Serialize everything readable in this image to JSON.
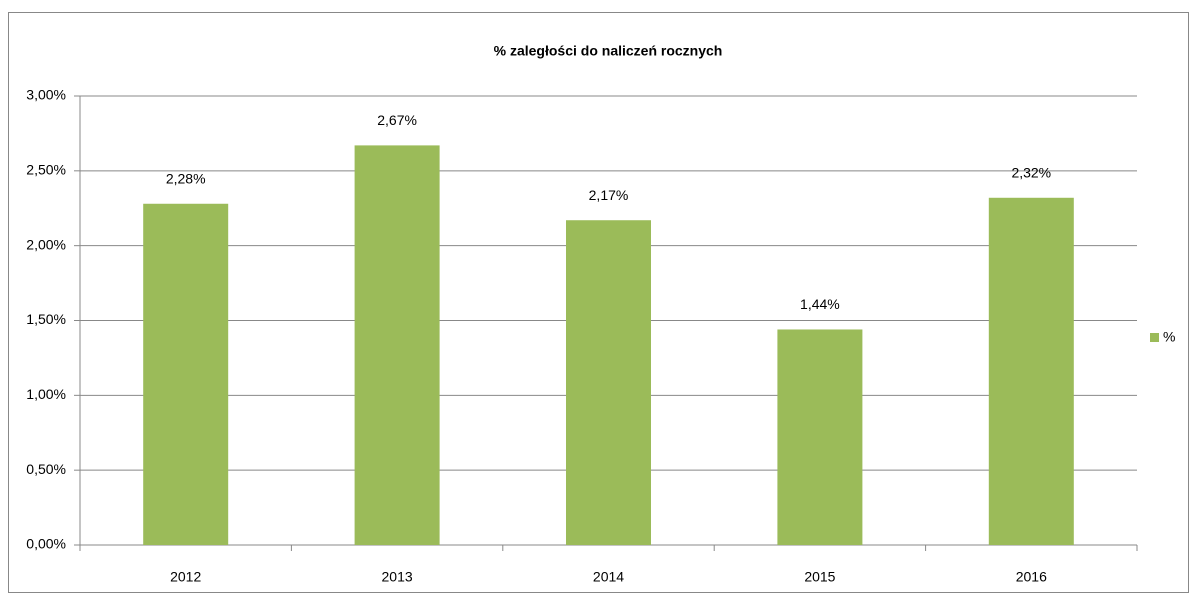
{
  "chart_data": {
    "type": "bar",
    "title": "% zaległości do naliczeń rocznych",
    "categories": [
      "2012",
      "2013",
      "2014",
      "2015",
      "2016"
    ],
    "series": [
      {
        "name": "%",
        "color": "#9bbb59",
        "values": [
          2.28,
          2.67,
          2.17,
          1.44,
          2.32
        ],
        "value_labels": [
          "2,28%",
          "2,67%",
          "2,17%",
          "1,44%",
          "2,32%"
        ]
      }
    ],
    "ylim": [
      0,
      3
    ],
    "yticks": [
      {
        "value": 0,
        "label": "0,00%"
      },
      {
        "value": 0.5,
        "label": "0,50%"
      },
      {
        "value": 1,
        "label": "1,00%"
      },
      {
        "value": 1.5,
        "label": "1,50%"
      },
      {
        "value": 2,
        "label": "2,00%"
      },
      {
        "value": 2.5,
        "label": "2,50%"
      },
      {
        "value": 3,
        "label": "3,00%"
      }
    ],
    "grid": true,
    "legend": "right"
  }
}
